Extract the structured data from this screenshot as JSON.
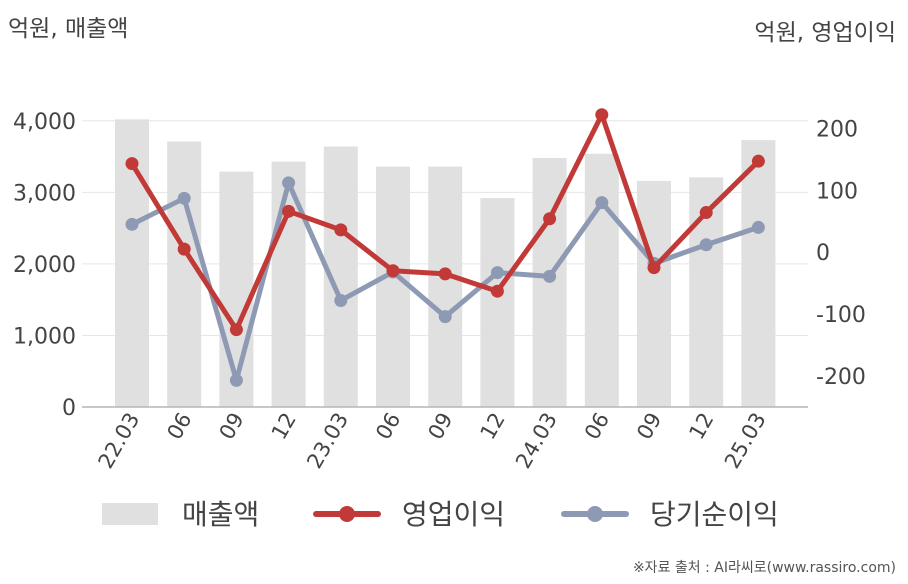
{
  "chart_data": {
    "type": "bar+line",
    "left_axis_label": "억원, 매출액",
    "right_axis_label": "억원, 영업이익",
    "categories": [
      "22.03",
      "06",
      "09",
      "12",
      "23.03",
      "06",
      "09",
      "12",
      "24.03",
      "06",
      "09",
      "12",
      "25.03"
    ],
    "left_axis": {
      "ylim": [
        0,
        4500
      ],
      "ticks": [
        0,
        1000,
        2000,
        3000,
        4000
      ],
      "tick_labels": [
        "0",
        "1,000",
        "2,000",
        "3,000",
        "4,000"
      ]
    },
    "right_axis": {
      "ylim": [
        -250,
        270
      ],
      "ticks": [
        -200,
        -100,
        0,
        100,
        200
      ],
      "tick_labels": [
        "-200",
        "-100",
        "0",
        "100",
        "200"
      ]
    },
    "series": [
      {
        "name": "매출액",
        "type": "bar",
        "axis": "left",
        "color": "#e0e0e0",
        "values": [
          4020,
          3710,
          3290,
          3430,
          3640,
          3360,
          3360,
          2920,
          3480,
          3540,
          3160,
          3210,
          3730
        ]
      },
      {
        "name": "영업이익",
        "type": "line",
        "axis": "right",
        "color": "#c23a38",
        "values": [
          143,
          5,
          -125,
          66,
          36,
          -30,
          -35,
          -63,
          54,
          222,
          -25,
          64,
          147
        ]
      },
      {
        "name": "당기순이익",
        "type": "line",
        "axis": "right",
        "color": "#8e9ab3",
        "values": [
          45,
          87,
          -207,
          112,
          -78,
          -32,
          -104,
          -33,
          -39,
          80,
          -18,
          12,
          40
        ]
      }
    ],
    "grid": true,
    "legend_position": "bottom"
  },
  "credit": "※자료 출처 : AI라씨로(www.rassiro.com)"
}
